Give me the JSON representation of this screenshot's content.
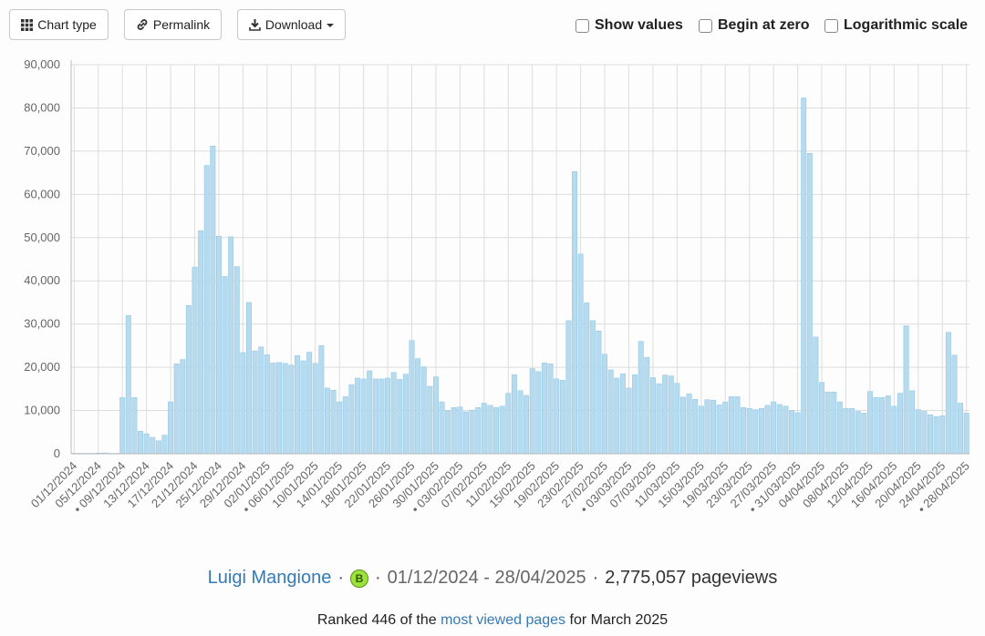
{
  "toolbar": {
    "chart_type_label": "Chart type",
    "permalink_label": "Permalink",
    "download_label": "Download",
    "show_values_label": "Show values",
    "begin_at_zero_label": "Begin at zero",
    "log_scale_label": "Logarithmic scale",
    "show_values_checked": false,
    "begin_at_zero_checked": false,
    "log_scale_checked": false
  },
  "footer": {
    "page_title": "Luigi Mangione",
    "badge_letter": "B",
    "date_range": "01/12/2024 - 28/04/2025",
    "pageviews": "2,775,057 pageviews",
    "ranked_prefix": "Ranked 446 of the",
    "ranked_link": "most viewed pages",
    "ranked_suffix": "for March 2025"
  },
  "colors": {
    "bar_fill": "#b6dbef",
    "bar_stroke": "#8fc3e3",
    "grid": "#dddddd",
    "link": "#337ab7"
  },
  "chart_data": {
    "type": "bar",
    "start_date": "2024-12-01",
    "end_date": "2025-04-28",
    "ylim": [
      0,
      90000
    ],
    "yticks": [
      0,
      10000,
      20000,
      30000,
      40000,
      50000,
      60000,
      70000,
      80000,
      90000
    ],
    "ytick_labels": [
      "0",
      "10,000",
      "20,000",
      "30,000",
      "40,000",
      "50,000",
      "60,000",
      "70,000",
      "80,000",
      "90,000"
    ],
    "xtick_labels": [
      "01/12/2024",
      "05/12/2024",
      "• 09/12/2024",
      "13/12/2024",
      "17/12/2024",
      "21/12/2024",
      "25/12/2024",
      "29/12/2024",
      "02/01/2025",
      "• 06/01/2025",
      "10/01/2025",
      "14/01/2025",
      "18/01/2025",
      "22/01/2025",
      "26/01/2025",
      "30/01/2025",
      "• 03/02/2025",
      "07/02/2025",
      "11/02/2025",
      "15/02/2025",
      "19/02/2025",
      "23/02/2025",
      "27/02/2025",
      "• 03/03/2025",
      "07/03/2025",
      "11/03/2025",
      "15/03/2025",
      "19/03/2025",
      "23/03/2025",
      "27/03/2025",
      "• 31/03/2025",
      "04/04/2025",
      "08/04/2025",
      "12/04/2025",
      "16/04/2025",
      "20/04/2025",
      "24/04/2025",
      "• 28/04/2025"
    ],
    "grid": true,
    "values": [
      100,
      100,
      100,
      100,
      150,
      200,
      100,
      100,
      13000,
      32000,
      13000,
      5200,
      4600,
      3800,
      3000,
      4300,
      12000,
      20800,
      21800,
      34300,
      43200,
      51600,
      66700,
      71200,
      50300,
      41000,
      50200,
      43300,
      23400,
      35000,
      23800,
      24700,
      22900,
      21000,
      21100,
      20900,
      20500,
      22700,
      21500,
      23500,
      20900,
      25000,
      15200,
      14700,
      12000,
      13200,
      16000,
      17500,
      17300,
      19200,
      17300,
      17300,
      17500,
      18800,
      17200,
      18400,
      26200,
      22000,
      20100,
      15600,
      17800,
      12000,
      10000,
      10700,
      10800,
      9700,
      10100,
      10700,
      11700,
      11200,
      10700,
      11000,
      14000,
      18300,
      14600,
      13500,
      19700,
      19000,
      21000,
      20800,
      17300,
      17000,
      30800,
      65300,
      46200,
      34900,
      30800,
      28400,
      23000,
      19400,
      17500,
      18500,
      15200,
      18300,
      26000,
      22300,
      17600,
      16200,
      18200,
      18000,
      16300,
      13100,
      13900,
      12600,
      11000,
      12500,
      12400,
      11300,
      12000,
      13200,
      13200,
      10700,
      10500,
      10200,
      10500,
      11200,
      12000,
      11400,
      11000,
      10000,
      9500,
      82300,
      69500,
      27000,
      16500,
      14300,
      14300,
      12000,
      10500,
      10500,
      9800,
      9400,
      14400,
      13000,
      13000,
      13400,
      11000,
      14000,
      29600,
      14600,
      10200,
      9800,
      9000,
      8600,
      8800,
      28100,
      22800,
      11700,
      9400
    ]
  }
}
